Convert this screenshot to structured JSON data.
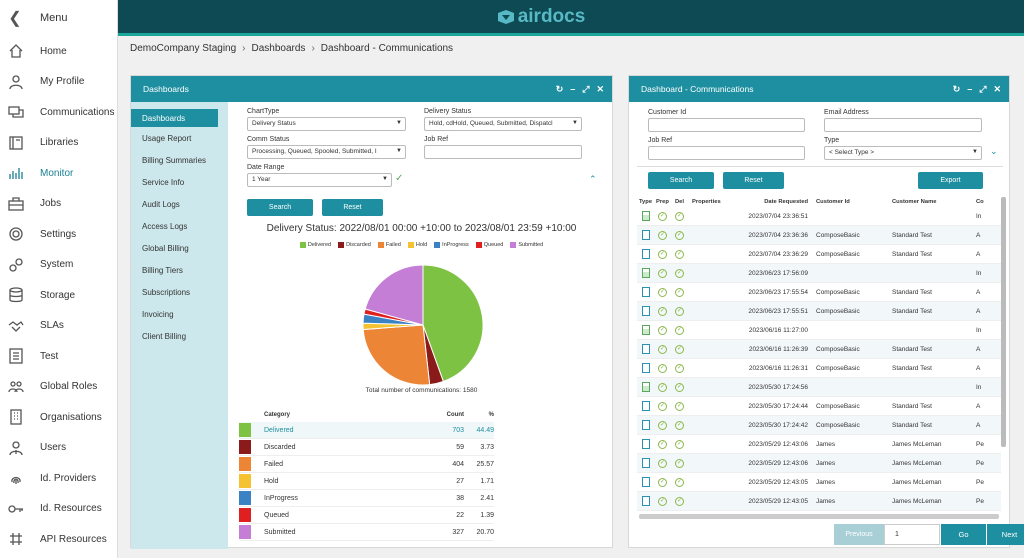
{
  "menu": {
    "label": "Menu"
  },
  "sidebar": {
    "items": [
      {
        "label": "Home",
        "icon": "home-icon"
      },
      {
        "label": "My Profile",
        "icon": "user-icon"
      },
      {
        "label": "Communications",
        "icon": "chat-icon"
      },
      {
        "label": "Libraries",
        "icon": "book-icon"
      },
      {
        "label": "Monitor",
        "icon": "chart-icon"
      },
      {
        "label": "Jobs",
        "icon": "briefcase-icon"
      },
      {
        "label": "Settings",
        "icon": "gear-icon"
      },
      {
        "label": "System",
        "icon": "cogs-icon"
      },
      {
        "label": "Storage",
        "icon": "database-icon"
      },
      {
        "label": "SLAs",
        "icon": "handshake-icon"
      },
      {
        "label": "Test",
        "icon": "checklist-icon"
      },
      {
        "label": "Global Roles",
        "icon": "group-icon"
      },
      {
        "label": "Organisations",
        "icon": "building-icon"
      },
      {
        "label": "Users",
        "icon": "user-tie-icon"
      },
      {
        "label": "Id. Providers",
        "icon": "fingerprint-icon"
      },
      {
        "label": "Id. Resources",
        "icon": "key-icon"
      },
      {
        "label": "API Resources",
        "icon": "api-icon"
      }
    ],
    "active": "Monitor"
  },
  "brand": {
    "logo_text": "airdocs"
  },
  "breadcrumb": [
    "DemoCompany Staging",
    "Dashboards",
    "Dashboard - Communications"
  ],
  "left_panel": {
    "title": "Dashboards",
    "nav": [
      "Dashboards",
      "Usage Report",
      "Billing Summaries",
      "Service Info",
      "Audit Logs",
      "Access Logs",
      "Global Billing",
      "Billing Tiers",
      "Subscriptions",
      "Invoicing",
      "Client Billing"
    ],
    "filters": {
      "chart_type_label": "ChartType",
      "chart_type_value": "Delivery Status",
      "delivery_status_label": "Delivery Status",
      "delivery_status_value": "Hold, cdHold, Queued, Submitted, Dispatcl",
      "comm_status_label": "Comm Status",
      "comm_status_value": "Processing, Queued, Spooled, Submitted, I",
      "job_ref_label": "Job Ref",
      "job_ref_value": "",
      "date_range_label": "Date Range",
      "date_range_value": "1 Year"
    },
    "buttons": {
      "search": "Search",
      "reset": "Reset"
    },
    "total_label": "Total number of communications: 1580",
    "table_headers": {
      "category": "Category",
      "count": "Count",
      "pct": "%"
    }
  },
  "chart_data": {
    "type": "pie",
    "title": "Delivery Status: 2022/08/01 00:00 +10:00 to 2023/08/01 23:59 +10:00",
    "categories": [
      "Delivered",
      "Discarded",
      "Failed",
      "Hold",
      "InProgress",
      "Queued",
      "Submitted"
    ],
    "values": [
      703,
      59,
      404,
      27,
      38,
      22,
      327
    ],
    "percents": [
      "44.49",
      "3.73",
      "25.57",
      "1.71",
      "2.41",
      "1.39",
      "20.70"
    ],
    "colors": [
      "#7dc242",
      "#8b1a1a",
      "#ed8536",
      "#f5c231",
      "#3b82c4",
      "#e02020",
      "#c47ed6"
    ],
    "legend": "top"
  },
  "right_panel": {
    "title": "Dashboard - Communications",
    "fields": {
      "customer_id_label": "Customer Id",
      "email_label": "Email Address",
      "job_ref_label": "Job Ref",
      "type_label": "Type",
      "type_placeholder": "< Select Type >"
    },
    "buttons": {
      "search": "Search",
      "reset": "Reset",
      "export": "Export"
    },
    "headers": {
      "type": "Type",
      "prep": "Prep",
      "del": "Del",
      "properties": "Properties",
      "date": "Date Requested",
      "cust": "Customer Id",
      "name": "Customer Name",
      "co": "Co"
    },
    "rows": [
      {
        "doc": "green",
        "date": "2023/07/04 23:36:51",
        "cust": "",
        "name": "",
        "co": "In"
      },
      {
        "doc": "blue",
        "date": "2023/07/04 23:36:36",
        "cust": "ComposeBasic",
        "name": "Standard Test",
        "co": "A"
      },
      {
        "doc": "blue",
        "date": "2023/07/04 23:36:29",
        "cust": "ComposeBasic",
        "name": "Standard Test",
        "co": "A"
      },
      {
        "doc": "green",
        "date": "2023/06/23 17:56:09",
        "cust": "",
        "name": "",
        "co": "In"
      },
      {
        "doc": "blue",
        "date": "2023/06/23 17:55:54",
        "cust": "ComposeBasic",
        "name": "Standard Test",
        "co": "A"
      },
      {
        "doc": "blue",
        "date": "2023/06/23 17:55:51",
        "cust": "ComposeBasic",
        "name": "Standard Test",
        "co": "A"
      },
      {
        "doc": "green",
        "date": "2023/06/16 11:27:00",
        "cust": "",
        "name": "",
        "co": "In"
      },
      {
        "doc": "blue",
        "date": "2023/06/16 11:26:39",
        "cust": "ComposeBasic",
        "name": "Standard Test",
        "co": "A"
      },
      {
        "doc": "blue",
        "date": "2023/06/16 11:26:31",
        "cust": "ComposeBasic",
        "name": "Standard Test",
        "co": "A"
      },
      {
        "doc": "green",
        "date": "2023/05/30 17:24:56",
        "cust": "",
        "name": "",
        "co": "In"
      },
      {
        "doc": "blue",
        "date": "2023/05/30 17:24:44",
        "cust": "ComposeBasic",
        "name": "Standard Test",
        "co": "A"
      },
      {
        "doc": "blue",
        "date": "2023/05/30 17:24:42",
        "cust": "ComposeBasic",
        "name": "Standard Test",
        "co": "A"
      },
      {
        "doc": "blue",
        "date": "2023/05/29 12:43:06",
        "cust": "James",
        "name": "James McLeman",
        "co": "Pe"
      },
      {
        "doc": "blue",
        "date": "2023/05/29 12:43:06",
        "cust": "James",
        "name": "James McLeman",
        "co": "Pe"
      },
      {
        "doc": "blue",
        "date": "2023/05/29 12:43:05",
        "cust": "James",
        "name": "James McLeman",
        "co": "Pe"
      },
      {
        "doc": "blue",
        "date": "2023/05/29 12:43:05",
        "cust": "James",
        "name": "James McLeman",
        "co": "Pe"
      }
    ],
    "pager": {
      "prev": "Previous",
      "page": "1",
      "go": "Go",
      "next": "Next"
    }
  },
  "colors": {
    "teal_dark": "#0e4a54",
    "teal": "#1e8fa0",
    "accent": "#19a79a"
  }
}
